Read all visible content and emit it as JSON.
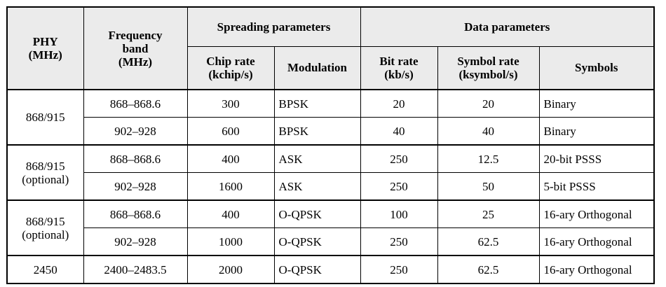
{
  "header": {
    "phy": "PHY\n(MHz)",
    "frequency_band": "Frequency\nband\n(MHz)",
    "spreading_parameters": "Spreading parameters",
    "data_parameters": "Data parameters",
    "chip_rate": "Chip rate\n(kchip/s)",
    "modulation": "Modulation",
    "bit_rate": "Bit rate\n(kb/s)",
    "symbol_rate": "Symbol rate\n(ksymbol/s)",
    "symbols": "Symbols"
  },
  "groups": [
    {
      "phy": "868/915",
      "rows": [
        {
          "band": "868–868.6",
          "chip_rate": "300",
          "modulation": "BPSK",
          "bit_rate": "20",
          "symbol_rate": "20",
          "symbols": "Binary"
        },
        {
          "band": "902–928",
          "chip_rate": "600",
          "modulation": "BPSK",
          "bit_rate": "40",
          "symbol_rate": "40",
          "symbols": "Binary"
        }
      ]
    },
    {
      "phy": "868/915\n(optional)",
      "rows": [
        {
          "band": "868–868.6",
          "chip_rate": "400",
          "modulation": "ASK",
          "bit_rate": "250",
          "symbol_rate": "12.5",
          "symbols": "20-bit PSSS"
        },
        {
          "band": "902–928",
          "chip_rate": "1600",
          "modulation": "ASK",
          "bit_rate": "250",
          "symbol_rate": "50",
          "symbols": "5-bit PSSS"
        }
      ]
    },
    {
      "phy": "868/915\n(optional)",
      "rows": [
        {
          "band": "868–868.6",
          "chip_rate": "400",
          "modulation": "O-QPSK",
          "bit_rate": "100",
          "symbol_rate": "25",
          "symbols": "16-ary Orthogonal"
        },
        {
          "band": "902–928",
          "chip_rate": "1000",
          "modulation": "O-QPSK",
          "bit_rate": "250",
          "symbol_rate": "62.5",
          "symbols": "16-ary Orthogonal"
        }
      ]
    },
    {
      "phy": "2450",
      "rows": [
        {
          "band": "2400–2483.5",
          "chip_rate": "2000",
          "modulation": "O-QPSK",
          "bit_rate": "250",
          "symbol_rate": "62.5",
          "symbols": "16-ary Orthogonal"
        }
      ]
    }
  ]
}
